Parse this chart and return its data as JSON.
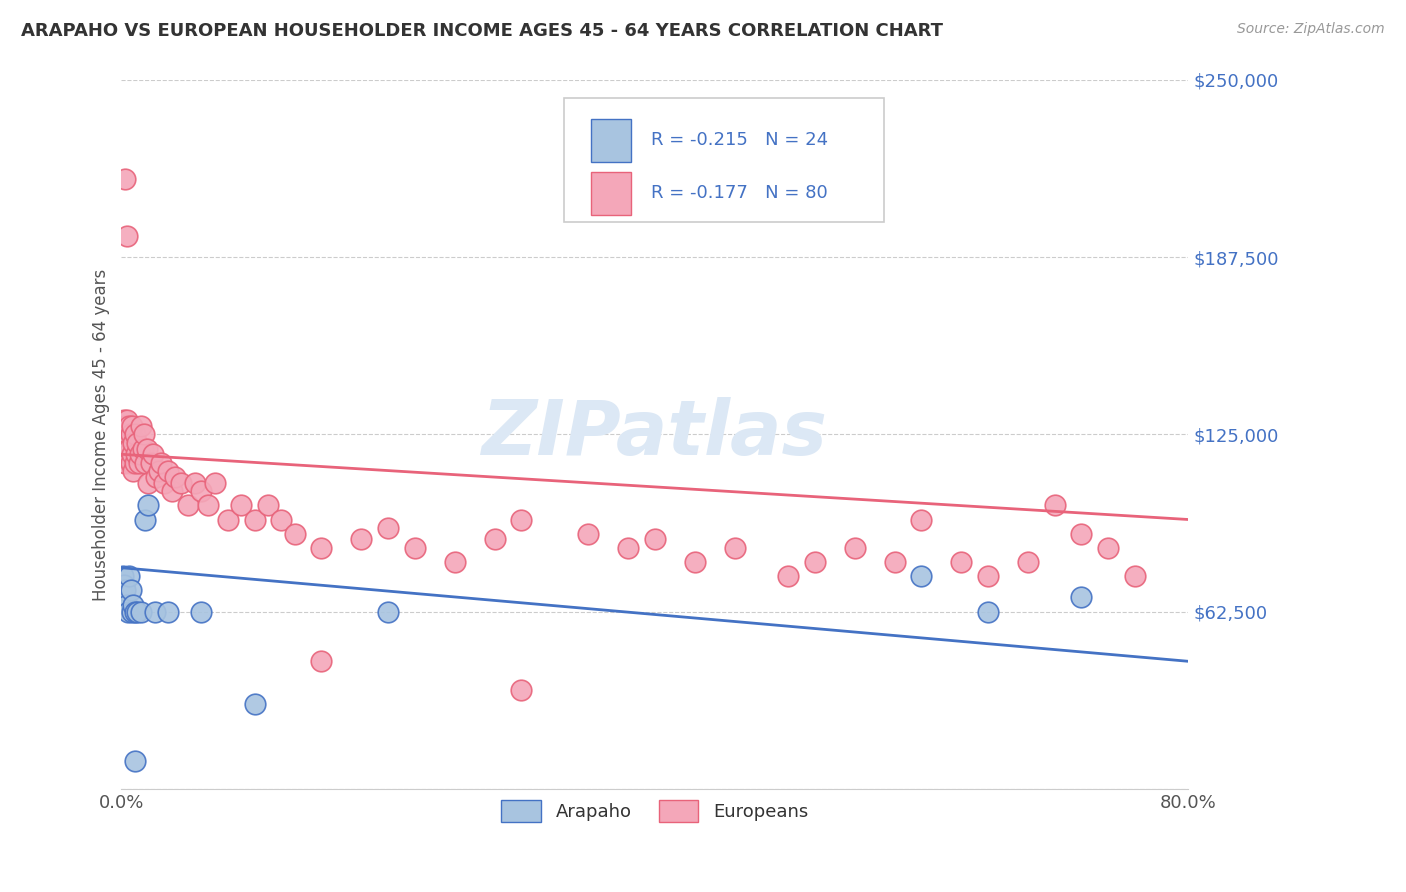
{
  "title": "ARAPAHO VS EUROPEAN HOUSEHOLDER INCOME AGES 45 - 64 YEARS CORRELATION CHART",
  "source": "Source: ZipAtlas.com",
  "ylabel": "Householder Income Ages 45 - 64 years",
  "xlim": [
    0.0,
    0.8
  ],
  "ylim": [
    0,
    250000
  ],
  "yticks": [
    0,
    62500,
    125000,
    187500,
    250000
  ],
  "ytick_labels": [
    "",
    "$62,500",
    "$125,000",
    "$187,500",
    "$250,000"
  ],
  "xtick_labels": [
    "0.0%",
    "80.0%"
  ],
  "legend_r_arapaho": "-0.215",
  "legend_n_arapaho": "24",
  "legend_r_europeans": "-0.177",
  "legend_n_europeans": "80",
  "arapaho_color": "#a8c4e0",
  "arapaho_line_color": "#4472c4",
  "europeans_color": "#f4a7b9",
  "europeans_line_color": "#e8637a",
  "watermark_color": "#dce8f5",
  "background_color": "#ffffff",
  "arapaho_x": [
    0.001,
    0.002,
    0.002,
    0.003,
    0.004,
    0.005,
    0.006,
    0.007,
    0.008,
    0.009,
    0.01,
    0.012,
    0.015,
    0.018,
    0.02,
    0.025,
    0.035,
    0.06,
    0.1,
    0.2,
    0.6,
    0.65,
    0.72,
    0.01
  ],
  "arapaho_y": [
    75000,
    72000,
    68000,
    70000,
    65000,
    62500,
    75000,
    70000,
    62500,
    65000,
    62500,
    62500,
    62500,
    95000,
    100000,
    62500,
    62500,
    62500,
    30000,
    62500,
    75000,
    62500,
    67500,
    10000
  ],
  "europeans_x": [
    0.001,
    0.001,
    0.002,
    0.002,
    0.003,
    0.003,
    0.003,
    0.004,
    0.004,
    0.005,
    0.005,
    0.006,
    0.006,
    0.007,
    0.007,
    0.008,
    0.008,
    0.009,
    0.009,
    0.01,
    0.01,
    0.011,
    0.012,
    0.013,
    0.014,
    0.015,
    0.016,
    0.017,
    0.018,
    0.019,
    0.02,
    0.022,
    0.024,
    0.026,
    0.028,
    0.03,
    0.032,
    0.035,
    0.038,
    0.04,
    0.045,
    0.05,
    0.055,
    0.06,
    0.065,
    0.07,
    0.08,
    0.09,
    0.1,
    0.11,
    0.12,
    0.13,
    0.15,
    0.18,
    0.2,
    0.22,
    0.25,
    0.28,
    0.3,
    0.35,
    0.38,
    0.4,
    0.43,
    0.46,
    0.5,
    0.52,
    0.55,
    0.58,
    0.6,
    0.63,
    0.65,
    0.68,
    0.7,
    0.72,
    0.74,
    0.76,
    0.15,
    0.3,
    0.003,
    0.004
  ],
  "europeans_y": [
    125000,
    118000,
    130000,
    122000,
    128000,
    120000,
    115000,
    130000,
    122000,
    125000,
    118000,
    128000,
    120000,
    115000,
    125000,
    118000,
    128000,
    122000,
    112000,
    125000,
    115000,
    118000,
    122000,
    115000,
    118000,
    128000,
    120000,
    125000,
    115000,
    120000,
    108000,
    115000,
    118000,
    110000,
    112000,
    115000,
    108000,
    112000,
    105000,
    110000,
    108000,
    100000,
    108000,
    105000,
    100000,
    108000,
    95000,
    100000,
    95000,
    100000,
    95000,
    90000,
    85000,
    88000,
    92000,
    85000,
    80000,
    88000,
    95000,
    90000,
    85000,
    88000,
    80000,
    85000,
    75000,
    80000,
    85000,
    80000,
    95000,
    80000,
    75000,
    80000,
    100000,
    90000,
    85000,
    75000,
    45000,
    35000,
    215000,
    195000
  ],
  "arapaho_trend_x": [
    0.0,
    0.8
  ],
  "arapaho_trend_y": [
    78000,
    45000
  ],
  "europeans_trend_x": [
    0.0,
    0.8
  ],
  "europeans_trend_y": [
    118000,
    95000
  ]
}
